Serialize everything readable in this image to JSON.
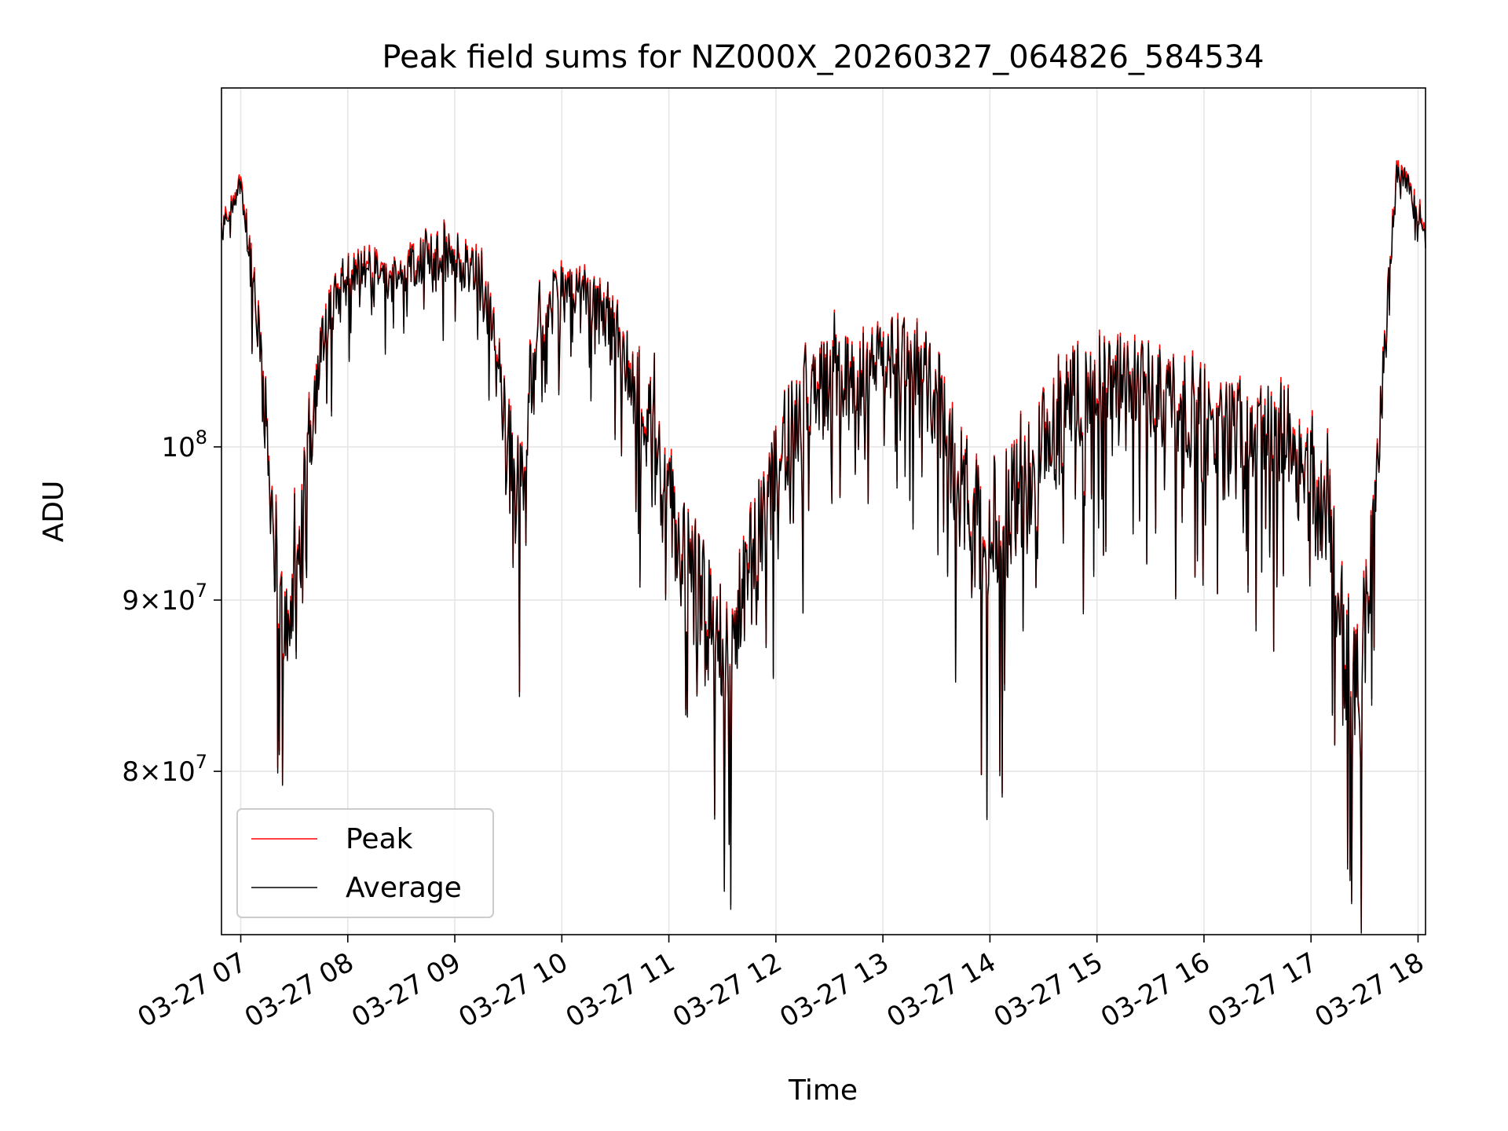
{
  "chart_data": {
    "type": "line",
    "title": "Peak field sums for NZ000X_20260327_064826_584534",
    "xlabel": "Time",
    "ylabel": "ADU",
    "x_unit": "hours since 2026-03-27 00:00",
    "xlim": [
      6.82,
      18.07
    ],
    "ylim": [
      71500000,
      128000000
    ],
    "yscale": "log",
    "grid": true,
    "legend_position": "lower-left",
    "x_ticks": [
      {
        "value": 7,
        "label": "03-27 07"
      },
      {
        "value": 8,
        "label": "03-27 08"
      },
      {
        "value": 9,
        "label": "03-27 09"
      },
      {
        "value": 10,
        "label": "03-27 10"
      },
      {
        "value": 11,
        "label": "03-27 11"
      },
      {
        "value": 12,
        "label": "03-27 12"
      },
      {
        "value": 13,
        "label": "03-27 13"
      },
      {
        "value": 14,
        "label": "03-27 14"
      },
      {
        "value": 15,
        "label": "03-27 15"
      },
      {
        "value": 16,
        "label": "03-27 16"
      },
      {
        "value": 17,
        "label": "03-27 17"
      },
      {
        "value": 18,
        "label": "03-27 18"
      }
    ],
    "y_ticks": [
      {
        "value": 80000000,
        "mantissa": "8",
        "exponent": "7"
      },
      {
        "value": 90000000,
        "mantissa": "9",
        "exponent": "7"
      },
      {
        "value": 100000000,
        "mantissa": "",
        "exponent": "8"
      }
    ],
    "envelope": {
      "x": [
        6.82,
        6.9,
        7.0,
        7.1,
        7.2,
        7.3,
        7.4,
        7.5,
        7.6,
        7.7,
        7.8,
        7.9,
        8.0,
        8.2,
        8.4,
        8.6,
        8.8,
        9.0,
        9.2,
        9.4,
        9.5,
        9.6,
        9.7,
        9.8,
        9.9,
        10.0,
        10.2,
        10.4,
        10.6,
        10.8,
        10.9,
        11.0,
        11.2,
        11.4,
        11.6,
        11.7,
        11.9,
        12.1,
        12.3,
        12.5,
        12.7,
        12.9,
        13.1,
        13.3,
        13.5,
        13.7,
        13.9,
        14.1,
        14.3,
        14.5,
        14.7,
        14.9,
        15.1,
        15.3,
        15.5,
        15.7,
        15.9,
        16.1,
        16.3,
        16.5,
        16.7,
        16.9,
        17.1,
        17.2,
        17.3,
        17.4,
        17.5,
        17.6,
        17.7,
        17.8,
        17.9,
        18.0,
        18.07
      ],
      "base": [
        116500000,
        117500000,
        120000000,
        113000000,
        104500000,
        95500000,
        88000000,
        91000000,
        97500000,
        104000000,
        108000000,
        110500000,
        112500000,
        113000000,
        112000000,
        113500000,
        114000000,
        114000000,
        113000000,
        106500000,
        100000000,
        95500000,
        104500000,
        110000000,
        110500000,
        111000000,
        111500000,
        109000000,
        106500000,
        102000000,
        99000000,
        96000000,
        91500000,
        88000000,
        87000000,
        90500000,
        95500000,
        100500000,
        103500000,
        104500000,
        105000000,
        105500000,
        106500000,
        106000000,
        103500000,
        98000000,
        94500000,
        95000000,
        96500000,
        99500000,
        102000000,
        104500000,
        105000000,
        104500000,
        104000000,
        103500000,
        102500000,
        100500000,
        100500000,
        101500000,
        101000000,
        99000000,
        95500000,
        93000000,
        87000000,
        84000000,
        88000000,
        96000000,
        108000000,
        121000000,
        120000000,
        117000000,
        116000000
      ],
      "amp": [
        1000000,
        1500000,
        1500000,
        4000000,
        6000000,
        6500000,
        6000000,
        6000000,
        6000000,
        5500000,
        5000000,
        4500000,
        3500000,
        3000000,
        3000000,
        3500000,
        3500000,
        3500000,
        4000000,
        6000000,
        7000000,
        7500000,
        6000000,
        4500000,
        4000000,
        4000000,
        3500000,
        4500000,
        5500000,
        7000000,
        7500000,
        8000000,
        8500000,
        8000000,
        7000000,
        7000000,
        7000000,
        6500000,
        6000000,
        6000000,
        6000000,
        6000000,
        5500000,
        6000000,
        7000000,
        8000000,
        8500000,
        8500000,
        8500000,
        8000000,
        7500000,
        6500000,
        6000000,
        6000000,
        6500000,
        7000000,
        7500000,
        7500000,
        7500000,
        7000000,
        7000000,
        7500000,
        8000000,
        8500000,
        9000000,
        8500000,
        7500000,
        6000000,
        4000000,
        2000000,
        1500000,
        1500000,
        1000000
      ]
    },
    "series": [
      {
        "name": "Peak",
        "color": "#ff0000",
        "peak_offset_ratio": 1.004
      },
      {
        "name": "Average",
        "color": "#000000",
        "peak_offset_ratio": 1.0
      }
    ]
  }
}
